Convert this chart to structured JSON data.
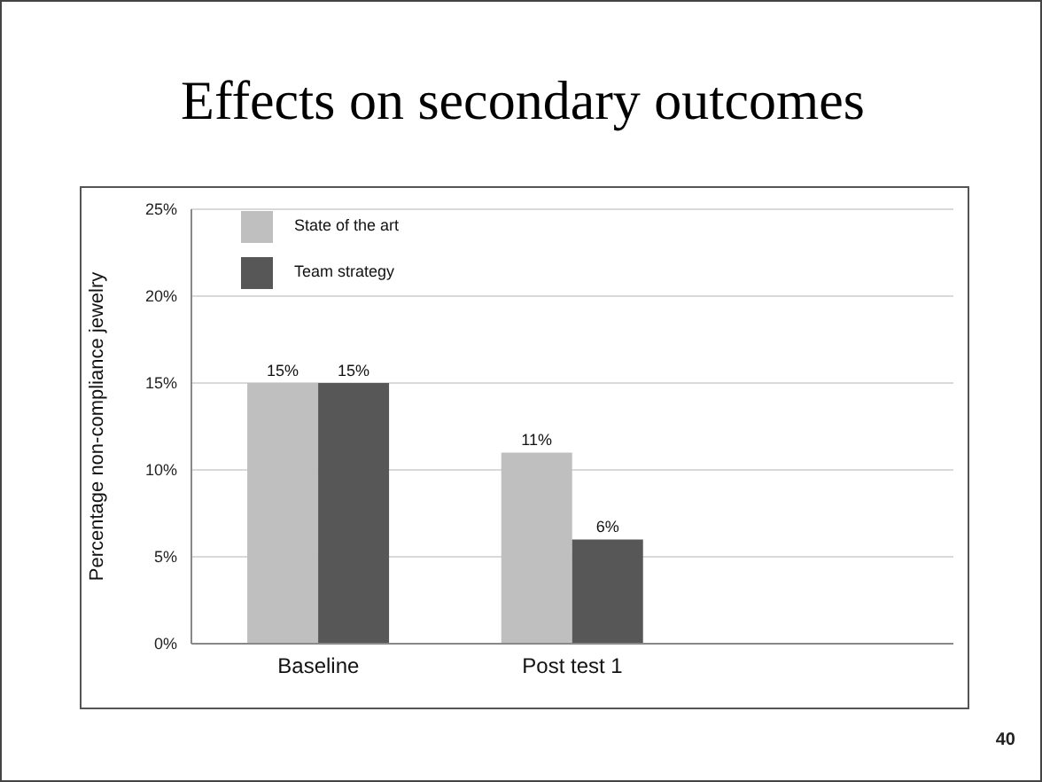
{
  "chart_data": {
    "type": "bar",
    "title": "Effects on secondary outcomes",
    "ylabel": "Percentage non-compliance jewelry",
    "categories": [
      "Baseline",
      "Post test 1",
      null
    ],
    "series": [
      {
        "name": "State of the art",
        "color": "#bfbfbf",
        "values": [
          15,
          11,
          null
        ],
        "value_labels": [
          "15%",
          "11%",
          null
        ]
      },
      {
        "name": "Team strategy",
        "color": "#575757",
        "values": [
          15,
          6,
          null
        ],
        "value_labels": [
          "15%",
          "6%",
          null
        ]
      }
    ],
    "ylim": [
      0,
      25
    ],
    "yticks": [
      {
        "value": 0,
        "label": "0%"
      },
      {
        "value": 5,
        "label": "5%"
      },
      {
        "value": 10,
        "label": "10%"
      },
      {
        "value": 15,
        "label": "15%"
      },
      {
        "value": 20,
        "label": "20%"
      },
      {
        "value": 25,
        "label": "25%"
      }
    ],
    "grid": "y",
    "legend": "top left",
    "annotations": [
      "40"
    ]
  }
}
